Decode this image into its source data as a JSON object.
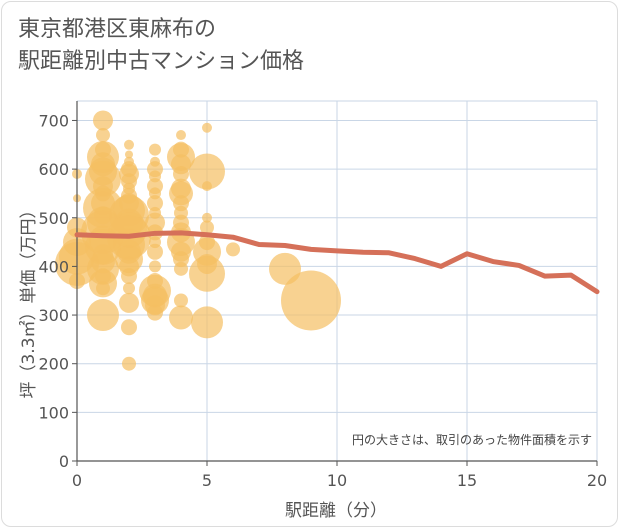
{
  "title": "東京都港区東麻布の\n駅距離別中古マンション価格",
  "chart_data": {
    "type": "scatter",
    "xlabel": "駅距離（分）",
    "ylabel": "坪（3.3㎡）単価（万円）",
    "xlim": [
      0,
      20
    ],
    "ylim": [
      0,
      740
    ],
    "xticks": [
      "0",
      "5",
      "10",
      "15",
      "20"
    ],
    "yticks": [
      "0",
      "100",
      "200",
      "300",
      "400",
      "500",
      "600",
      "700"
    ],
    "xtick_values": [
      0,
      5,
      10,
      15,
      20
    ],
    "ytick_values": [
      0,
      100,
      200,
      300,
      400,
      500,
      600,
      700
    ],
    "grid": true,
    "annotation": "円の大きさは、取引のあった物件面積を示す",
    "colors": {
      "bubble": "#f5bf62",
      "line": "#d57059",
      "grid": "#c9d6e6",
      "axis": "#555555"
    },
    "bubbles": [
      {
        "x": 0,
        "y": 590,
        "s": 5
      },
      {
        "x": 0,
        "y": 540,
        "s": 4
      },
      {
        "x": 0,
        "y": 480,
        "s": 10
      },
      {
        "x": 0,
        "y": 450,
        "s": 14
      },
      {
        "x": 0,
        "y": 420,
        "s": 18
      },
      {
        "x": 0,
        "y": 405,
        "s": 22
      },
      {
        "x": 0,
        "y": 370,
        "s": 8
      },
      {
        "x": 1,
        "y": 700,
        "s": 10
      },
      {
        "x": 1,
        "y": 670,
        "s": 7
      },
      {
        "x": 1,
        "y": 640,
        "s": 8
      },
      {
        "x": 1,
        "y": 625,
        "s": 16
      },
      {
        "x": 1,
        "y": 610,
        "s": 12
      },
      {
        "x": 1,
        "y": 595,
        "s": 14
      },
      {
        "x": 1,
        "y": 580,
        "s": 18
      },
      {
        "x": 1,
        "y": 565,
        "s": 10
      },
      {
        "x": 1,
        "y": 550,
        "s": 8
      },
      {
        "x": 1,
        "y": 530,
        "s": 12
      },
      {
        "x": 1,
        "y": 520,
        "s": 20
      },
      {
        "x": 1,
        "y": 505,
        "s": 9
      },
      {
        "x": 1,
        "y": 490,
        "s": 16
      },
      {
        "x": 1,
        "y": 470,
        "s": 22
      },
      {
        "x": 1,
        "y": 455,
        "s": 14
      },
      {
        "x": 1,
        "y": 440,
        "s": 18
      },
      {
        "x": 1,
        "y": 425,
        "s": 10
      },
      {
        "x": 1,
        "y": 410,
        "s": 12
      },
      {
        "x": 1,
        "y": 395,
        "s": 16
      },
      {
        "x": 1,
        "y": 380,
        "s": 8
      },
      {
        "x": 1,
        "y": 365,
        "s": 14
      },
      {
        "x": 1,
        "y": 355,
        "s": 7
      },
      {
        "x": 1,
        "y": 300,
        "s": 16
      },
      {
        "x": 2,
        "y": 650,
        "s": 5
      },
      {
        "x": 2,
        "y": 630,
        "s": 4
      },
      {
        "x": 2,
        "y": 615,
        "s": 5
      },
      {
        "x": 2,
        "y": 600,
        "s": 8
      },
      {
        "x": 2,
        "y": 590,
        "s": 10
      },
      {
        "x": 2,
        "y": 575,
        "s": 8
      },
      {
        "x": 2,
        "y": 560,
        "s": 6
      },
      {
        "x": 2,
        "y": 545,
        "s": 8
      },
      {
        "x": 2,
        "y": 530,
        "s": 10
      },
      {
        "x": 2,
        "y": 515,
        "s": 16
      },
      {
        "x": 2,
        "y": 505,
        "s": 20
      },
      {
        "x": 2,
        "y": 490,
        "s": 14
      },
      {
        "x": 2,
        "y": 475,
        "s": 18
      },
      {
        "x": 2,
        "y": 460,
        "s": 22
      },
      {
        "x": 2,
        "y": 445,
        "s": 16
      },
      {
        "x": 2,
        "y": 430,
        "s": 12
      },
      {
        "x": 2,
        "y": 415,
        "s": 14
      },
      {
        "x": 2,
        "y": 400,
        "s": 10
      },
      {
        "x": 2,
        "y": 380,
        "s": 8
      },
      {
        "x": 2,
        "y": 355,
        "s": 6
      },
      {
        "x": 2,
        "y": 325,
        "s": 10
      },
      {
        "x": 2,
        "y": 275,
        "s": 8
      },
      {
        "x": 2,
        "y": 200,
        "s": 7
      },
      {
        "x": 3,
        "y": 640,
        "s": 6
      },
      {
        "x": 3,
        "y": 615,
        "s": 5
      },
      {
        "x": 3,
        "y": 600,
        "s": 8
      },
      {
        "x": 3,
        "y": 585,
        "s": 6
      },
      {
        "x": 3,
        "y": 565,
        "s": 8
      },
      {
        "x": 3,
        "y": 550,
        "s": 6
      },
      {
        "x": 3,
        "y": 530,
        "s": 8
      },
      {
        "x": 3,
        "y": 510,
        "s": 6
      },
      {
        "x": 3,
        "y": 490,
        "s": 10
      },
      {
        "x": 3,
        "y": 470,
        "s": 8
      },
      {
        "x": 3,
        "y": 450,
        "s": 6
      },
      {
        "x": 3,
        "y": 430,
        "s": 8
      },
      {
        "x": 3,
        "y": 400,
        "s": 6
      },
      {
        "x": 3,
        "y": 370,
        "s": 8
      },
      {
        "x": 3,
        "y": 350,
        "s": 16
      },
      {
        "x": 3,
        "y": 340,
        "s": 12
      },
      {
        "x": 3,
        "y": 330,
        "s": 14
      },
      {
        "x": 3,
        "y": 320,
        "s": 10
      },
      {
        "x": 3,
        "y": 305,
        "s": 8
      },
      {
        "x": 4,
        "y": 670,
        "s": 5
      },
      {
        "x": 4,
        "y": 640,
        "s": 8
      },
      {
        "x": 4,
        "y": 625,
        "s": 14
      },
      {
        "x": 4,
        "y": 610,
        "s": 10
      },
      {
        "x": 4,
        "y": 590,
        "s": 8
      },
      {
        "x": 4,
        "y": 560,
        "s": 10
      },
      {
        "x": 4,
        "y": 550,
        "s": 12
      },
      {
        "x": 4,
        "y": 530,
        "s": 8
      },
      {
        "x": 4,
        "y": 510,
        "s": 7
      },
      {
        "x": 4,
        "y": 490,
        "s": 8
      },
      {
        "x": 4,
        "y": 470,
        "s": 10
      },
      {
        "x": 4,
        "y": 450,
        "s": 14
      },
      {
        "x": 4,
        "y": 430,
        "s": 10
      },
      {
        "x": 4,
        "y": 415,
        "s": 8
      },
      {
        "x": 4,
        "y": 395,
        "s": 7
      },
      {
        "x": 4,
        "y": 330,
        "s": 7
      },
      {
        "x": 4,
        "y": 295,
        "s": 12
      },
      {
        "x": 5,
        "y": 685,
        "s": 5
      },
      {
        "x": 5,
        "y": 595,
        "s": 18
      },
      {
        "x": 5,
        "y": 565,
        "s": 5
      },
      {
        "x": 5,
        "y": 500,
        "s": 5
      },
      {
        "x": 5,
        "y": 480,
        "s": 7
      },
      {
        "x": 5,
        "y": 450,
        "s": 8
      },
      {
        "x": 5,
        "y": 430,
        "s": 14
      },
      {
        "x": 5,
        "y": 405,
        "s": 10
      },
      {
        "x": 5,
        "y": 385,
        "s": 18
      },
      {
        "x": 5,
        "y": 285,
        "s": 16
      },
      {
        "x": 6,
        "y": 435,
        "s": 7
      },
      {
        "x": 8,
        "y": 395,
        "s": 16
      },
      {
        "x": 9,
        "y": 330,
        "s": 30
      }
    ],
    "series": [
      {
        "x": [
          0,
          1,
          2,
          3,
          4,
          5,
          6,
          7,
          8,
          9,
          10,
          11,
          12,
          13,
          14,
          15,
          16,
          17,
          18,
          19,
          20
        ],
        "y": [
          465,
          463,
          462,
          468,
          469,
          465,
          460,
          445,
          443,
          435,
          432,
          429,
          428,
          416,
          400,
          426,
          410,
          402,
          380,
          382,
          348
        ]
      }
    ]
  }
}
